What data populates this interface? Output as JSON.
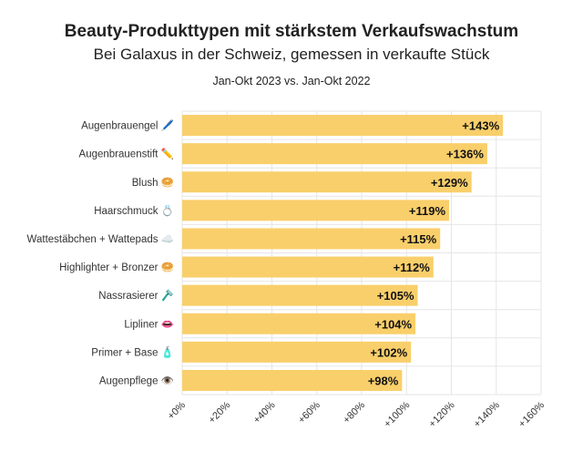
{
  "chart_data": {
    "type": "bar",
    "orientation": "horizontal",
    "title": "Beauty-Produkttypen mit stärkstem Verkaufswachstum",
    "subtitle": "Bei Galaxus in der Schweiz, gemessen in verkaufte Stück",
    "period": "Jan-Okt 2023 vs. Jan-Okt 2022",
    "categories": [
      "Augenbrauengel",
      "Augenbrauenstift",
      "Blush",
      "Haarschmuck",
      "Wattestäbchen + Wattepads",
      "Highlighter + Bronzer",
      "Nassrasierer",
      "Lipliner",
      "Primer + Base",
      "Augenpflege"
    ],
    "emojis": [
      "🖊️",
      "✏️",
      "🥯",
      "💍",
      "☁️",
      "🥯",
      "🪒",
      "👄",
      "🧴",
      "👁️"
    ],
    "values": [
      143,
      136,
      129,
      119,
      115,
      112,
      105,
      104,
      102,
      98
    ],
    "value_labels": [
      "+143%",
      "+136%",
      "+129%",
      "+119%",
      "+115%",
      "+112%",
      "+105%",
      "+104%",
      "+102%",
      "+98%"
    ],
    "xlim": [
      0,
      160
    ],
    "x_ticks": [
      0,
      20,
      40,
      60,
      80,
      100,
      120,
      140,
      160
    ],
    "x_tick_labels": [
      "+0%",
      "+20%",
      "+40%",
      "+60%",
      "+80%",
      "+100%",
      "+120%",
      "+140%",
      "+160%"
    ],
    "xlabel": "",
    "ylabel": "",
    "grid": true,
    "bar_color": "#F9CF6B",
    "grid_color": "#e6e6e6"
  }
}
